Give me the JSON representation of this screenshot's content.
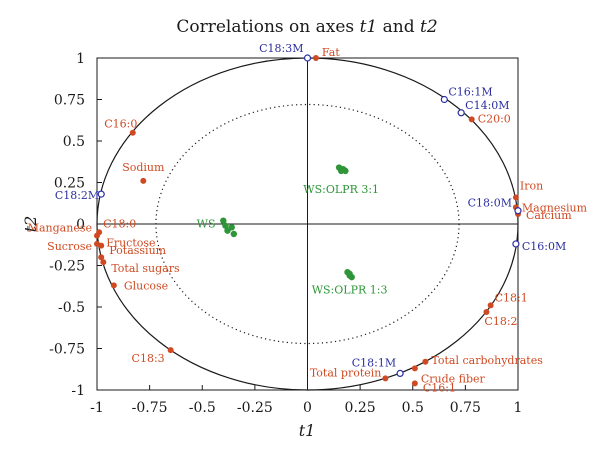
{
  "chart_data": {
    "type": "scatter",
    "title": "Correlations on axes t1 and t2",
    "xlabel": "t1",
    "ylabel": "t2",
    "xlim": [
      -1,
      1
    ],
    "ylim": [
      -1,
      1
    ],
    "x_ticks": [
      "-1",
      "-0.75",
      "-0.5",
      "-0.25",
      "0",
      "0.25",
      "0.5",
      "0.75",
      "1"
    ],
    "y_ticks": [
      "-1",
      "-0.75",
      "-0.5",
      "-0.25",
      "0",
      "0.25",
      "0.5",
      "0.75",
      "1"
    ],
    "circles": {
      "outer_radius": 1,
      "inner_radius": 0.72
    },
    "colors": {
      "active": "#cf4a22",
      "supplementary": "#2b2fa0",
      "observations": "#2e9638",
      "frame": "#1a1a1a"
    },
    "series": [
      {
        "group": "active",
        "marker": "filled",
        "points": [
          {
            "label": "Fat",
            "x": 0.04,
            "y": 1.0
          },
          {
            "label": "C16:0",
            "x": -0.83,
            "y": 0.55
          },
          {
            "label": "Sodium",
            "x": -0.78,
            "y": 0.26
          },
          {
            "label": "C20:0",
            "x": 0.78,
            "y": 0.63
          },
          {
            "label": "Iron",
            "x": 0.99,
            "y": 0.16
          },
          {
            "label": "Magnesium",
            "x": 0.99,
            "y": 0.1
          },
          {
            "label": "Calcium",
            "x": 1.0,
            "y": 0.06
          },
          {
            "label": "Manganese",
            "x": -1.0,
            "y": -0.07
          },
          {
            "label": "C18:0",
            "x": -0.99,
            "y": -0.05
          },
          {
            "label": "Sucrose",
            "x": -1.0,
            "y": -0.12
          },
          {
            "label": "Fructose",
            "x": -0.98,
            "y": -0.13
          },
          {
            "label": "Potassium",
            "x": -0.98,
            "y": -0.2
          },
          {
            "label": "Total sugars",
            "x": -0.97,
            "y": -0.23
          },
          {
            "label": "Glucose",
            "x": -0.92,
            "y": -0.37
          },
          {
            "label": "C18:3",
            "x": -0.65,
            "y": -0.76
          },
          {
            "label": "C18:1",
            "x": 0.87,
            "y": -0.49
          },
          {
            "label": "C18:2",
            "x": 0.85,
            "y": -0.53
          },
          {
            "label": "Total carbohydrates",
            "x": 0.56,
            "y": -0.83
          },
          {
            "label": "Crude fiber",
            "x": 0.51,
            "y": -0.87
          },
          {
            "label": "Total protein",
            "x": 0.37,
            "y": -0.93
          },
          {
            "label": "C16:1",
            "x": 0.51,
            "y": -0.96
          }
        ]
      },
      {
        "group": "supplementary",
        "marker": "open",
        "points": [
          {
            "label": "C18:3M",
            "x": 0.0,
            "y": 1.0
          },
          {
            "label": "C16:1M",
            "x": 0.65,
            "y": 0.75
          },
          {
            "label": "C14:0M",
            "x": 0.73,
            "y": 0.67
          },
          {
            "label": "C18:2M",
            "x": -0.98,
            "y": 0.18
          },
          {
            "label": "C18:0M",
            "x": 1.0,
            "y": 0.08
          },
          {
            "label": "C16:0M",
            "x": 0.99,
            "y": -0.12
          },
          {
            "label": "C18:1M",
            "x": 0.44,
            "y": -0.9
          }
        ]
      },
      {
        "group": "observations",
        "marker": "filled",
        "points": [
          {
            "label": "WS",
            "x": -0.38,
            "y": -0.04
          },
          {
            "label": "",
            "x": -0.4,
            "y": 0.02
          },
          {
            "label": "",
            "x": -0.36,
            "y": -0.02
          },
          {
            "label": "",
            "x": -0.39,
            "y": -0.01
          },
          {
            "label": "",
            "x": -0.35,
            "y": -0.06
          },
          {
            "label": "WS:OLPR 3:1",
            "x": 0.16,
            "y": 0.32
          },
          {
            "label": "",
            "x": 0.15,
            "y": 0.34
          },
          {
            "label": "",
            "x": 0.17,
            "y": 0.33
          },
          {
            "label": "",
            "x": 0.18,
            "y": 0.32
          },
          {
            "label": "WS:OLPR 1:3",
            "x": 0.2,
            "y": -0.31
          },
          {
            "label": "",
            "x": 0.19,
            "y": -0.29
          },
          {
            "label": "",
            "x": 0.2,
            "y": -0.3
          },
          {
            "label": "",
            "x": 0.21,
            "y": -0.32
          }
        ]
      }
    ]
  }
}
